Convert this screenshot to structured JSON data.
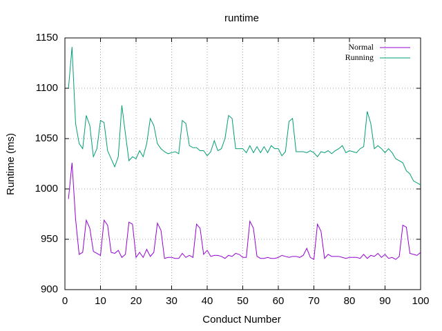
{
  "chart_data": {
    "type": "line",
    "title": "runtime",
    "x_label": "Conduct Number",
    "y_label": "Runtime (ms)",
    "x": [
      1,
      2,
      3,
      4,
      5,
      6,
      7,
      8,
      9,
      10,
      11,
      12,
      13,
      14,
      15,
      16,
      17,
      18,
      19,
      20,
      21,
      22,
      23,
      24,
      25,
      26,
      27,
      28,
      29,
      30,
      31,
      32,
      33,
      34,
      35,
      36,
      37,
      38,
      39,
      40,
      41,
      42,
      43,
      44,
      45,
      46,
      47,
      48,
      49,
      50,
      51,
      52,
      53,
      54,
      55,
      56,
      57,
      58,
      59,
      60,
      61,
      62,
      63,
      64,
      65,
      66,
      67,
      68,
      69,
      70,
      71,
      72,
      73,
      74,
      75,
      76,
      77,
      78,
      79,
      80,
      81,
      82,
      83,
      84,
      85,
      86,
      87,
      88,
      89,
      90,
      91,
      92,
      93,
      94,
      95,
      96,
      97,
      98,
      99,
      100
    ],
    "series": [
      {
        "name": "Normal",
        "color": "#9400d3",
        "values": [
          990,
          1026,
          970,
          935,
          937,
          969,
          961,
          938,
          936,
          934,
          969,
          964,
          937,
          936,
          939,
          932,
          935,
          967,
          965,
          932,
          937,
          932,
          940,
          933,
          937,
          966,
          959,
          931,
          932,
          932,
          931,
          931,
          936,
          932,
          934,
          932,
          965,
          961,
          935,
          939,
          933,
          934,
          934,
          933,
          931,
          934,
          933,
          936,
          935,
          932,
          932,
          968,
          961,
          933,
          931,
          931,
          932,
          931,
          931,
          932,
          934,
          933,
          932,
          933,
          933,
          932,
          934,
          941,
          932,
          930,
          965,
          958,
          931,
          935,
          933,
          933,
          933,
          932,
          931,
          932,
          932,
          932,
          931,
          935,
          931,
          934,
          933,
          936,
          932,
          935,
          931,
          932,
          930,
          933,
          964,
          962,
          936,
          935,
          934,
          937
        ]
      },
      {
        "name": "Running",
        "color": "#009e73",
        "values": [
          1100,
          1141,
          1065,
          1045,
          1040,
          1073,
          1063,
          1032,
          1040,
          1068,
          1066,
          1038,
          1030,
          1022,
          1032,
          1083,
          1055,
          1028,
          1032,
          1030,
          1038,
          1032,
          1045,
          1070,
          1063,
          1045,
          1040,
          1037,
          1035,
          1036,
          1037,
          1035,
          1068,
          1065,
          1043,
          1041,
          1041,
          1038,
          1038,
          1033,
          1037,
          1048,
          1038,
          1040,
          1050,
          1073,
          1070,
          1040,
          1040,
          1040,
          1036,
          1043,
          1036,
          1042,
          1036,
          1042,
          1036,
          1043,
          1040,
          1040,
          1033,
          1037,
          1067,
          1070,
          1037,
          1037,
          1037,
          1036,
          1038,
          1036,
          1032,
          1037,
          1036,
          1038,
          1035,
          1038,
          1040,
          1043,
          1036,
          1038,
          1037,
          1036,
          1040,
          1042,
          1077,
          1065,
          1040,
          1043,
          1040,
          1036,
          1040,
          1036,
          1030,
          1028,
          1026,
          1018,
          1015,
          1008,
          1006,
          1004
        ]
      }
    ],
    "xlim": [
      0,
      100
    ],
    "xticks": [
      0,
      10,
      20,
      30,
      40,
      50,
      60,
      70,
      80,
      90,
      100
    ],
    "ylim": [
      900,
      1150
    ],
    "yticks": [
      900,
      950,
      1000,
      1050,
      1100,
      1150
    ],
    "grid": true,
    "legend": "top-right"
  }
}
